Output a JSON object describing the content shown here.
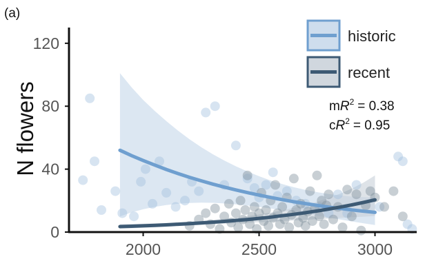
{
  "chart_data": {
    "type": "scatter",
    "panel_label": "(a)",
    "ylabel": "N flowers",
    "xlabel": "",
    "xlim": [
      1680,
      3180
    ],
    "ylim": [
      0,
      130
    ],
    "xticks": [
      2000,
      2500,
      3000
    ],
    "yticks": [
      0,
      40,
      80,
      120
    ],
    "grid": false,
    "legend_position": "top-right",
    "stats": [
      {
        "prefix": "m",
        "symbol": "R",
        "sup": "2",
        "value": "= 0.38"
      },
      {
        "prefix": "c",
        "symbol": "R",
        "sup": "2",
        "value": "= 0.95"
      }
    ],
    "series": [
      {
        "name": "historic",
        "color": "#6f9fcf",
        "band_color": "#c5d7ea",
        "point_color": "#9fbedd",
        "fit_x": [
          1900,
          1950,
          2000,
          2050,
          2100,
          2150,
          2200,
          2250,
          2300,
          2350,
          2400,
          2450,
          2500,
          2550,
          2600,
          2650,
          2700,
          2750,
          2800,
          2850,
          2900,
          2950,
          3000
        ],
        "fit_y": [
          52,
          48.6,
          45.5,
          42.6,
          39.8,
          37.2,
          34.8,
          32.6,
          30.5,
          28.6,
          26.8,
          25.1,
          23.5,
          22,
          20.6,
          19.3,
          18.1,
          17,
          15.9,
          15,
          14.1,
          13.3,
          12.5
        ],
        "ci_upper": [
          101,
          92,
          84,
          77,
          70.5,
          64.5,
          59,
          54,
          49.5,
          45.5,
          41.8,
          38.5,
          35.5,
          32.8,
          30.5,
          28.5,
          26.8,
          25.4,
          24.2,
          23.3,
          22.6,
          22.2,
          22
        ],
        "ci_lower": [
          10,
          12.5,
          14.5,
          16,
          17.2,
          18,
          18.5,
          18.7,
          18.6,
          18.2,
          17.6,
          16.9,
          16,
          15,
          13.9,
          12.8,
          11.6,
          10.4,
          9.2,
          8,
          6.8,
          5.6,
          4.5
        ],
        "points": [
          [
            1740,
            33
          ],
          [
            1770,
            85
          ],
          [
            1790,
            45
          ],
          [
            1820,
            14
          ],
          [
            1880,
            26
          ],
          [
            1910,
            12
          ],
          [
            1960,
            10
          ],
          [
            1990,
            32
          ],
          [
            2010,
            40
          ],
          [
            2040,
            18
          ],
          [
            2070,
            45
          ],
          [
            2100,
            25
          ],
          [
            2140,
            16
          ],
          [
            2180,
            20
          ],
          [
            2210,
            32
          ],
          [
            2240,
            26
          ],
          [
            2270,
            76
          ],
          [
            2310,
            80
          ],
          [
            2350,
            30
          ],
          [
            2400,
            55
          ],
          [
            2450,
            34
          ],
          [
            2480,
            28
          ],
          [
            2500,
            22
          ],
          [
            2530,
            30
          ],
          [
            2560,
            38
          ],
          [
            2580,
            23
          ],
          [
            2620,
            26
          ],
          [
            2660,
            20
          ],
          [
            2700,
            18
          ],
          [
            2760,
            16
          ],
          [
            2800,
            12
          ],
          [
            2840,
            24
          ],
          [
            2880,
            12
          ],
          [
            2920,
            30
          ],
          [
            3020,
            16
          ],
          [
            3100,
            48
          ],
          [
            3120,
            45
          ],
          [
            3140,
            5
          ],
          [
            3160,
            2
          ]
        ]
      },
      {
        "name": "recent",
        "color": "#3d5a74",
        "band_color": "#c8d0d8",
        "point_color": "#7d8c99",
        "fit_x": [
          1900,
          1950,
          2000,
          2050,
          2100,
          2150,
          2200,
          2250,
          2300,
          2350,
          2400,
          2450,
          2500,
          2550,
          2600,
          2650,
          2700,
          2750,
          2800,
          2850,
          2900,
          2950,
          3000
        ],
        "fit_y": [
          3.5,
          3.7,
          4,
          4.3,
          4.6,
          5,
          5.4,
          5.8,
          6.3,
          6.8,
          7.4,
          8,
          8.7,
          9.5,
          10.4,
          11.3,
          12.3,
          13.4,
          14.6,
          15.9,
          17.3,
          18.8,
          20.5
        ],
        "ci_upper": [
          5,
          5.1,
          5.3,
          5.5,
          5.8,
          6.2,
          6.6,
          7.1,
          7.7,
          8.4,
          9.2,
          10.1,
          11.2,
          12.4,
          13.8,
          15.4,
          17.2,
          19.3,
          21.7,
          24.4,
          27.6,
          31.4,
          36
        ],
        "ci_lower": [
          2.2,
          2.4,
          2.7,
          3,
          3.4,
          3.8,
          4.2,
          4.6,
          5,
          5.3,
          5.6,
          5.9,
          6.2,
          6.6,
          7,
          7.4,
          7.8,
          8.2,
          8.6,
          9,
          9.4,
          9.8,
          10.2
        ],
        "points": [
          [
            2200,
            4
          ],
          [
            2240,
            8
          ],
          [
            2270,
            12
          ],
          [
            2290,
            5
          ],
          [
            2310,
            15
          ],
          [
            2330,
            2
          ],
          [
            2350,
            10
          ],
          [
            2370,
            18
          ],
          [
            2380,
            6
          ],
          [
            2400,
            12
          ],
          [
            2410,
            3
          ],
          [
            2420,
            20
          ],
          [
            2430,
            8
          ],
          [
            2440,
            14
          ],
          [
            2450,
            36
          ],
          [
            2460,
            5
          ],
          [
            2470,
            10
          ],
          [
            2480,
            16
          ],
          [
            2490,
            2
          ],
          [
            2500,
            12
          ],
          [
            2510,
            25
          ],
          [
            2520,
            7
          ],
          [
            2530,
            14
          ],
          [
            2540,
            4
          ],
          [
            2550,
            20
          ],
          [
            2560,
            9
          ],
          [
            2570,
            30
          ],
          [
            2580,
            12
          ],
          [
            2590,
            5
          ],
          [
            2600,
            16
          ],
          [
            2610,
            8
          ],
          [
            2620,
            22
          ],
          [
            2630,
            3
          ],
          [
            2640,
            11
          ],
          [
            2650,
            34
          ],
          [
            2660,
            14
          ],
          [
            2670,
            6
          ],
          [
            2680,
            18
          ],
          [
            2690,
            9
          ],
          [
            2700,
            4
          ],
          [
            2710,
            13
          ],
          [
            2720,
            26
          ],
          [
            2730,
            7
          ],
          [
            2740,
            15
          ],
          [
            2750,
            36
          ],
          [
            2760,
            10
          ],
          [
            2770,
            20
          ],
          [
            2780,
            5
          ],
          [
            2790,
            17
          ],
          [
            2800,
            24
          ],
          [
            2820,
            8
          ],
          [
            2840,
            16
          ],
          [
            2860,
            3
          ],
          [
            2880,
            27
          ],
          [
            2900,
            10
          ],
          [
            2920,
            24
          ],
          [
            2940,
            1
          ],
          [
            2960,
            17
          ],
          [
            2980,
            26
          ],
          [
            3000,
            22
          ],
          [
            3040,
            16
          ],
          [
            3080,
            26
          ],
          [
            3120,
            10
          ]
        ]
      }
    ]
  }
}
